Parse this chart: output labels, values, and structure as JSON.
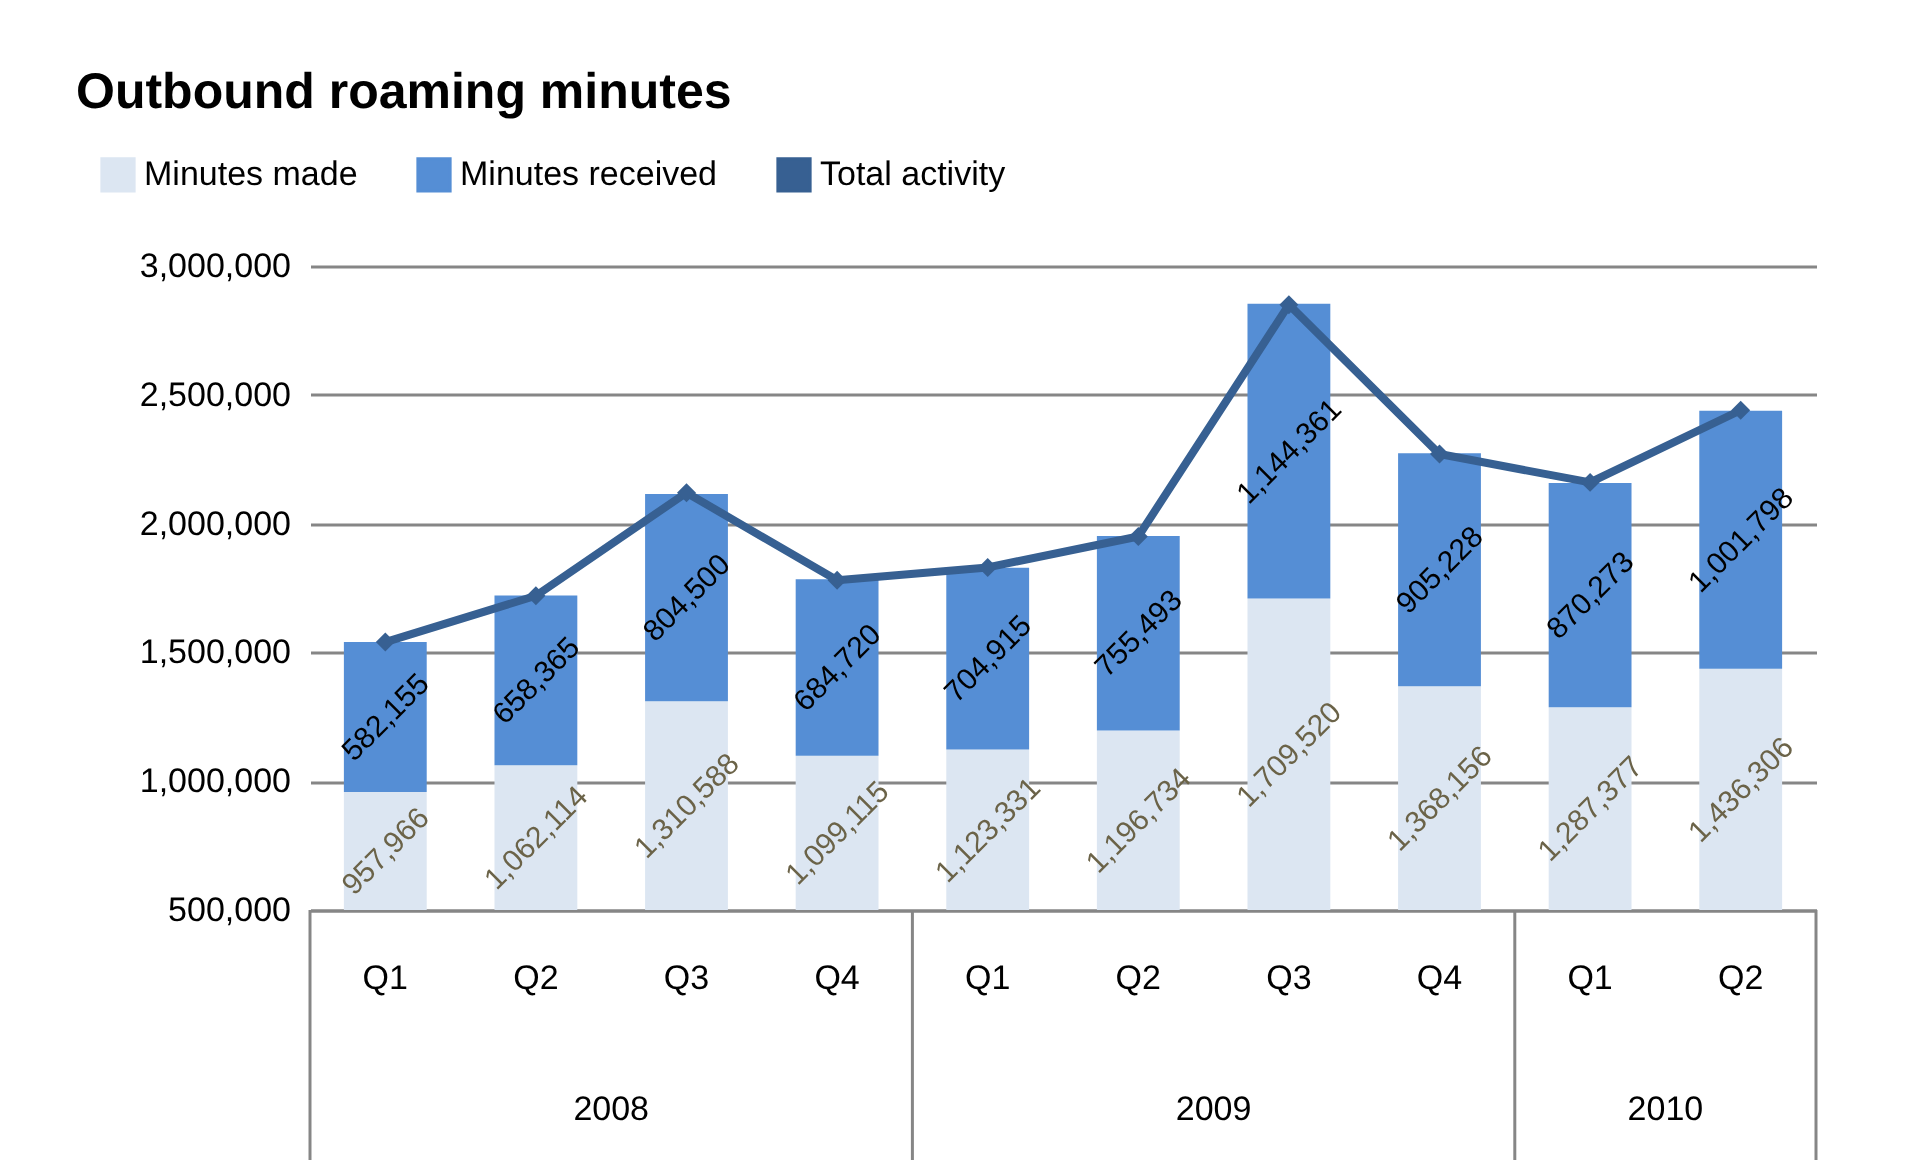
{
  "chart_data": {
    "type": "bar",
    "title": "Outbound roaming minutes",
    "categories": [
      "Q1",
      "Q2",
      "Q3",
      "Q4",
      "Q1",
      "Q2",
      "Q3",
      "Q4",
      "Q1",
      "Q2"
    ],
    "stacked": true,
    "series": [
      {
        "name": "Minutes made",
        "color": "#dce6f2",
        "values": [
          957966,
          1062114,
          1310588,
          1099115,
          1123331,
          1196734,
          1709520,
          1368156,
          1287377,
          1436306
        ],
        "value_labels": [
          "957,966",
          "1,062,114",
          "1,310,588",
          "1,099,115",
          "1,123,331",
          "1,196,734",
          "1,709,520",
          "1,368,156",
          "1,287,377",
          "1,436,306"
        ]
      },
      {
        "name": "Minutes received",
        "color": "#558ed5",
        "values": [
          582155,
          658365,
          804500,
          684720,
          704915,
          755493,
          1144361,
          905228,
          870273,
          1001798
        ],
        "value_labels": [
          "582,155",
          "658,365",
          "804,500",
          "684,720",
          "704,915",
          "755,493",
          "1,144,361",
          "905,228",
          "870,273",
          "1,001,798"
        ]
      },
      {
        "name": "Total activity",
        "type": "line",
        "color": "#376092",
        "values": [
          1540000,
          1720000,
          2120000,
          1780000,
          1830000,
          1950000,
          2850000,
          2270000,
          2160000,
          2440000
        ]
      }
    ],
    "ylim": [
      500000,
      3000000
    ],
    "yticks": [
      {
        "value": 500000,
        "label": "500,000"
      },
      {
        "value": 1000000,
        "label": "1,000,000"
      },
      {
        "value": 1500000,
        "label": "1,500,000"
      },
      {
        "value": 2000000,
        "label": "2,000,000"
      },
      {
        "value": 2500000,
        "label": "2,500,000"
      },
      {
        "value": 3000000,
        "label": "3,000,000"
      }
    ],
    "grid": "y",
    "legend": "top left",
    "marker": "diamond",
    "annotations": [
      "2008",
      "2009",
      "2010"
    ]
  }
}
